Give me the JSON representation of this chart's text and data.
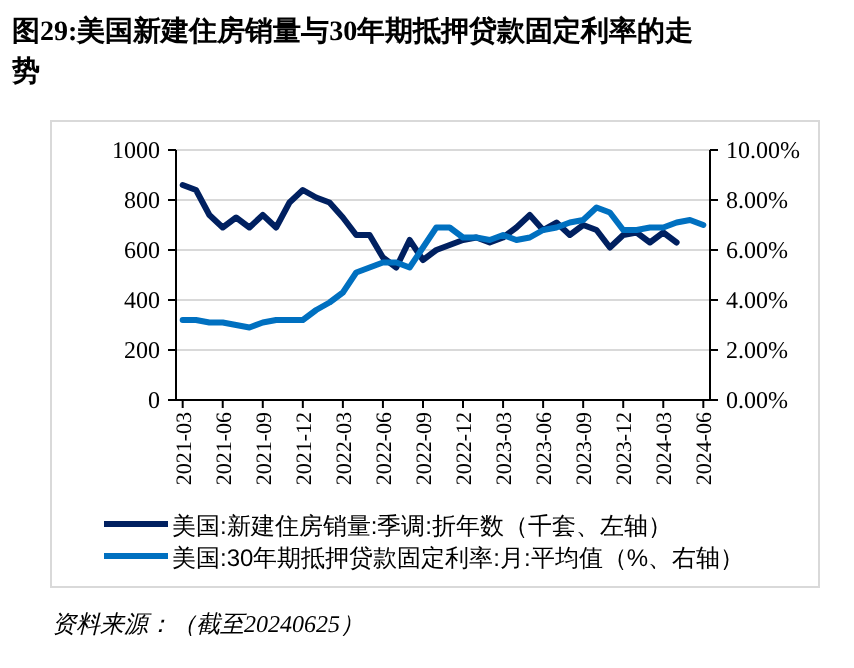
{
  "chart_data": {
    "type": "line",
    "title": "图29:美国新建住房销量与30年期抵押贷款固定利率的走势",
    "categories": [
      "2021-03",
      null,
      null,
      "2021-06",
      null,
      null,
      "2021-09",
      null,
      null,
      "2021-12",
      null,
      null,
      "2022-03",
      null,
      null,
      "2022-06",
      null,
      null,
      "2022-09",
      null,
      null,
      "2022-12",
      null,
      null,
      "2023-03",
      null,
      null,
      "2023-06",
      null,
      null,
      "2023-09",
      null,
      null,
      "2023-12",
      null,
      null,
      "2024-03",
      null,
      null,
      "2024-06"
    ],
    "series": [
      {
        "name": "美国:新建住房销量:季调:折年数（千套、左轴）",
        "color": "#002060",
        "values": [
          860,
          840,
          740,
          690,
          730,
          690,
          740,
          690,
          790,
          840,
          810,
          790,
          730,
          660,
          660,
          570,
          530,
          640,
          560,
          600,
          620,
          640,
          650,
          630,
          650,
          690,
          740,
          680,
          710,
          660,
          700,
          680,
          610,
          660,
          670,
          630,
          670,
          630,
          null,
          null
        ]
      },
      {
        "name": "美国:30年期抵押贷款固定利率:月:平均值（%、右轴）",
        "color": "#0070c0",
        "axis": "y2",
        "values": [
          3.2,
          3.2,
          3.1,
          3.1,
          3.0,
          2.9,
          3.1,
          3.2,
          3.2,
          3.2,
          3.6,
          3.9,
          4.3,
          5.1,
          5.3,
          5.5,
          5.5,
          5.3,
          6.1,
          6.9,
          6.9,
          6.5,
          6.5,
          6.4,
          6.6,
          6.4,
          6.5,
          6.8,
          6.9,
          7.1,
          7.2,
          7.7,
          7.5,
          6.8,
          6.8,
          6.9,
          6.9,
          7.1,
          7.2,
          7.0
        ]
      }
    ],
    "ylim": [
      0,
      1000
    ],
    "yticks": [
      0,
      200,
      400,
      600,
      800,
      1000
    ],
    "y2lim": [
      0,
      10
    ],
    "y2ticks": [
      {
        "value": 0,
        "label": "0.00%"
      },
      {
        "value": 2,
        "label": "2.00%"
      },
      {
        "value": 4,
        "label": "4.00%"
      },
      {
        "value": 6,
        "label": "6.00%"
      },
      {
        "value": 8,
        "label": "8.00%"
      },
      {
        "value": 10,
        "label": "10.00%"
      }
    ],
    "grid": "y",
    "legend": "bottom",
    "annotations": [
      "资料来源：（截至20240625）"
    ]
  }
}
